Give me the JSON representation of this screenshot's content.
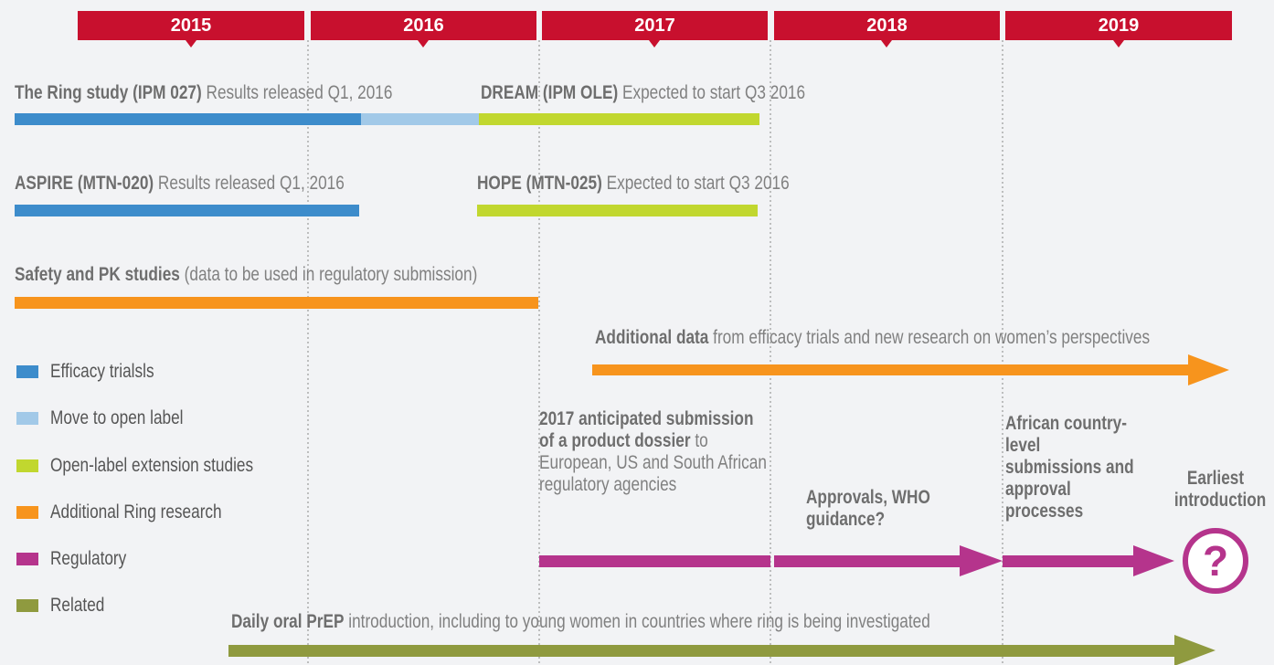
{
  "years": [
    "2015",
    "2016",
    "2017",
    "2018",
    "2019"
  ],
  "rows": [
    {
      "title": "The Ring study (IPM 027)",
      "note": "Results released Q1, 2016"
    },
    {
      "title": "DREAM (IPM OLE)",
      "note": "Expected to start Q3 2016"
    },
    {
      "title": "ASPIRE (MTN-020)",
      "note": "Results released Q1, 2016"
    },
    {
      "title": "HOPE (MTN-025)",
      "note": "Expected to start Q3 2016"
    },
    {
      "title": "Safety and PK studies",
      "note": "(data to be used in regulatory submission)"
    },
    {
      "title": "Additional data",
      "note": "from efficacy trials and new research on women’s perspectives"
    },
    {
      "title": "Daily oral PrEP",
      "note": "introduction, including to young women in countries where ring is being investigated"
    }
  ],
  "legend": [
    "Efficacy trialsls",
    "Move to open label",
    "Open-label extension studies",
    "Additional Ring research",
    "Regulatory",
    "Related"
  ],
  "submission": {
    "title": "2017 anticipated submission of a product dossier",
    "note": "to European, US and South African regulatory agencies"
  },
  "approvals": "Approvals, WHO guidance?",
  "african": "African country-level submissions and approval processes",
  "earliest": "Earliest introduction",
  "question": "?"
}
